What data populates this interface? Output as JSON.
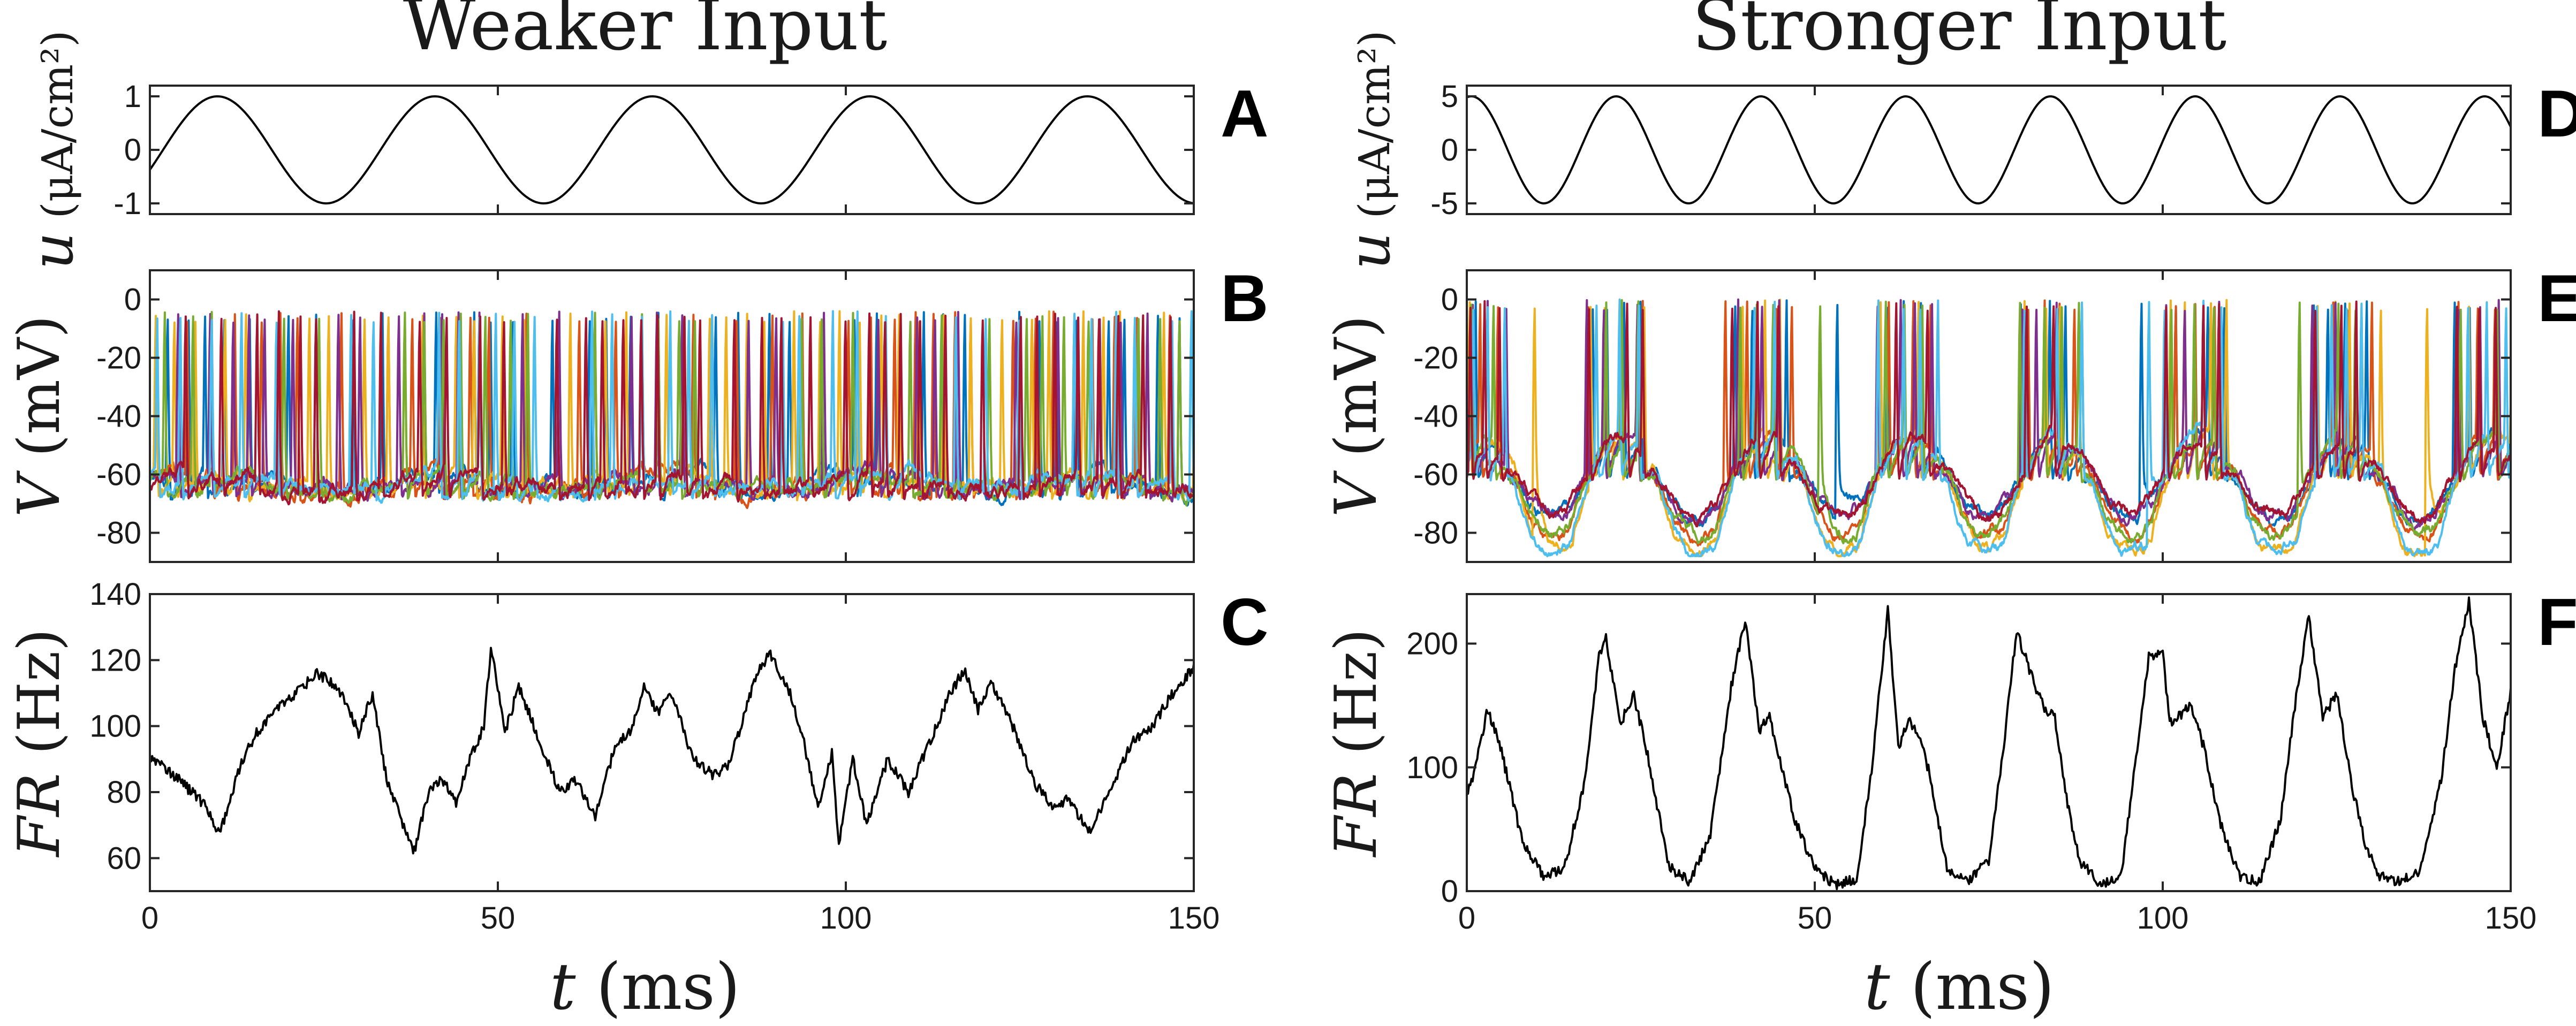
{
  "figure": {
    "columns": [
      {
        "title": "Weaker Input"
      },
      {
        "title": "Stronger Input"
      }
    ],
    "x_title": "t (ms)"
  },
  "chart_data": [
    {
      "id": "A",
      "type": "line",
      "panel_label": "A",
      "title": "Weaker Input",
      "xlabel": "",
      "ylabel": "u (μA/cm²)",
      "xlim": [
        0,
        150
      ],
      "ylim": [
        -1.2,
        1.2
      ],
      "x_ticks": [
        0,
        50,
        100,
        150
      ],
      "x_tick_labels_shown": false,
      "y_ticks": [
        -1,
        0,
        1
      ],
      "y_tick_labels": [
        "-1",
        "0",
        "1"
      ],
      "series": [
        {
          "name": "u",
          "function": "sine",
          "amplitude": 1,
          "period_ms": 31.25,
          "phase": -0.38,
          "color": "#000000"
        }
      ]
    },
    {
      "id": "B",
      "type": "line",
      "panel_label": "B",
      "xlabel": "",
      "ylabel": "V (mV)",
      "xlim": [
        0,
        150
      ],
      "ylim": [
        -90,
        10
      ],
      "x_ticks": [
        0,
        50,
        100,
        150
      ],
      "x_tick_labels_shown": false,
      "y_ticks": [
        -80,
        -60,
        -40,
        -20,
        0
      ],
      "y_tick_labels": [
        "-80",
        "-60",
        "-40",
        "-20",
        "0"
      ],
      "traces": {
        "count": 7,
        "rest_mV": -62,
        "spike_peak_mV": -6,
        "min_mV": -75,
        "spike_rate_hz_mean": 45
      },
      "series_colors": [
        "#0072BD",
        "#D95319",
        "#EDB120",
        "#7E2F8E",
        "#77AC30",
        "#4DBEEE",
        "#A2142F"
      ]
    },
    {
      "id": "C",
      "type": "line",
      "panel_label": "C",
      "xlabel": "t (ms)",
      "ylabel": "FR (Hz)",
      "xlim": [
        0,
        150
      ],
      "ylim": [
        50,
        140
      ],
      "x_ticks": [
        0,
        50,
        100,
        150
      ],
      "x_tick_labels": [
        "0",
        "50",
        "100",
        "150"
      ],
      "y_ticks": [
        60,
        80,
        100,
        120,
        140
      ],
      "y_tick_labels": [
        "60",
        "80",
        "100",
        "120",
        "140"
      ],
      "series": [
        {
          "name": "firing rate",
          "color": "#000000",
          "x": [
            0,
            2,
            5,
            8,
            10,
            13,
            15,
            18,
            21,
            24,
            27,
            30,
            32,
            34,
            36,
            38,
            40,
            42,
            44,
            46,
            48,
            49,
            51,
            53,
            55,
            57,
            59,
            61,
            64,
            67,
            69,
            71,
            73,
            75,
            78,
            81,
            83,
            85,
            87,
            89,
            92,
            94,
            96,
            98,
            99,
            101,
            103,
            106,
            109,
            112,
            115,
            117,
            119,
            121,
            124,
            127,
            130,
            132,
            135,
            138,
            141,
            144,
            147,
            150
          ],
          "y": [
            91,
            88,
            82,
            76,
            67,
            88,
            97,
            105,
            110,
            116,
            112,
            98,
            110,
            84,
            72,
            62,
            80,
            84,
            77,
            90,
            100,
            124,
            98,
            112,
            101,
            90,
            80,
            84,
            73,
            95,
            98,
            112,
            104,
            110,
            90,
            85,
            88,
            100,
            115,
            122,
            110,
            95,
            75,
            92,
            64,
            90,
            70,
            90,
            80,
            95,
            110,
            117,
            105,
            113,
            100,
            83,
            75,
            78,
            68,
            80,
            95,
            100,
            110,
            118
          ]
        }
      ]
    },
    {
      "id": "D",
      "type": "line",
      "panel_label": "D",
      "title": "Stronger Input",
      "xlabel": "",
      "ylabel": "u (μA/cm²)",
      "xlim": [
        0,
        150
      ],
      "ylim": [
        -6,
        6
      ],
      "x_ticks": [
        0,
        50,
        100,
        150
      ],
      "x_tick_labels_shown": false,
      "y_ticks": [
        -5,
        0,
        5
      ],
      "y_tick_labels": [
        "-5",
        "0",
        "5"
      ],
      "series": [
        {
          "name": "u",
          "function": "sine",
          "amplitude": 5,
          "period_ms": 20.8,
          "phase": 1.37,
          "color": "#000000"
        }
      ]
    },
    {
      "id": "E",
      "type": "line",
      "panel_label": "E",
      "xlabel": "",
      "ylabel": "V (mV)",
      "xlim": [
        0,
        150
      ],
      "ylim": [
        -90,
        10
      ],
      "x_ticks": [
        0,
        50,
        100,
        150
      ],
      "x_tick_labels_shown": false,
      "y_ticks": [
        -80,
        -60,
        -40,
        -20,
        0
      ],
      "y_tick_labels": [
        "-80",
        "-60",
        "-40",
        "-20",
        "0"
      ],
      "traces": {
        "count": 7,
        "rest_mV": -60,
        "spike_peak_mV": -2,
        "min_mV": -88,
        "bursts_per_cycle": 1
      },
      "series_colors": [
        "#0072BD",
        "#D95319",
        "#EDB120",
        "#7E2F8E",
        "#77AC30",
        "#4DBEEE",
        "#A2142F"
      ]
    },
    {
      "id": "F",
      "type": "line",
      "panel_label": "F",
      "xlabel": "t (ms)",
      "ylabel": "FR (Hz)",
      "xlim": [
        0,
        150
      ],
      "ylim": [
        0,
        240
      ],
      "x_ticks": [
        0,
        50,
        100,
        150
      ],
      "x_tick_labels": [
        "0",
        "50",
        "100",
        "150"
      ],
      "y_ticks": [
        0,
        100,
        200
      ],
      "y_tick_labels": [
        "0",
        "100",
        "200"
      ],
      "series": [
        {
          "name": "firing rate",
          "color": "#000000",
          "x": [
            0,
            1,
            3,
            5,
            8,
            11,
            14,
            17,
            19,
            20,
            22,
            24,
            26,
            29,
            32,
            35,
            38,
            40,
            42,
            43.5,
            45,
            47,
            50,
            53,
            56,
            58,
            60.5,
            62,
            63.5,
            65,
            66.5,
            69,
            72,
            75,
            77,
            79,
            81.5,
            83,
            84.5,
            86,
            88,
            91,
            94,
            96,
            98,
            100,
            101,
            104,
            106,
            108,
            111,
            114,
            117,
            119,
            121,
            123,
            125,
            127,
            129,
            131,
            134,
            137,
            140,
            142,
            144,
            146,
            148,
            150
          ],
          "y": [
            80,
            95,
            148,
            112,
            40,
            12,
            18,
            90,
            190,
            205,
            135,
            158,
            110,
            20,
            8,
            45,
            165,
            220,
            130,
            142,
            105,
            60,
            18,
            5,
            10,
            90,
            228,
            115,
            140,
            125,
            95,
            18,
            8,
            25,
            110,
            210,
            168,
            148,
            140,
            80,
            25,
            5,
            12,
            100,
            190,
            192,
            135,
            150,
            115,
            60,
            12,
            8,
            60,
            150,
            222,
            140,
            160,
            90,
            40,
            12,
            8,
            15,
            90,
            180,
            235,
            140,
            100,
            162
          ]
        }
      ]
    }
  ]
}
